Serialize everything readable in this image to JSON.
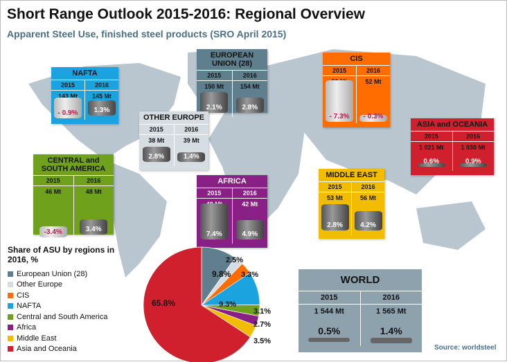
{
  "title": "Short Range Outlook 2015-2016: Regional Overview",
  "subtitle": "Apparent Steel Use, finished steel products (SRO April 2015)",
  "regions": [
    {
      "key": "eu",
      "name": "EUROPEAN UNION (28)",
      "y2015": "2015",
      "y2016": "2016",
      "v2015": "150 Mt",
      "v2016": "154 Mt",
      "g2015": "2.1%",
      "g2016": "2.8%",
      "color": "#5f7f8f"
    },
    {
      "key": "nafta",
      "name": "NAFTA",
      "y2015": "2015",
      "y2016": "2016",
      "v2015": "143 Mt",
      "v2016": "145 Mt",
      "g2015": "- 0.9%",
      "g2016": "1.3%",
      "color": "#1ba3df"
    },
    {
      "key": "cis",
      "name": "CIS",
      "y2015": "2015",
      "y2016": "2016",
      "v2015": "52 Mt",
      "v2016": "52 Mt",
      "g2015": "- 7.3%",
      "g2016": "- 0.3%",
      "color": "#ff6d00"
    },
    {
      "key": "oe",
      "name": "OTHER EUROPE",
      "y2015": "2015",
      "y2016": "2016",
      "v2015": "38 Mt",
      "v2016": "39 Mt",
      "g2015": "2.8%",
      "g2016": "1.4%",
      "color": "#d6dde2"
    },
    {
      "key": "asia",
      "name": "ASIA and OCEANIA",
      "y2015": "2015",
      "y2016": "2016",
      "v2015": "1 021 Mt",
      "v2016": "1 030 Mt",
      "g2015": "0.6%",
      "g2016": "0.9%",
      "color": "#d0202e"
    },
    {
      "key": "csa",
      "name": "CENTRAL and SOUTH AMERICA",
      "y2015": "2015",
      "y2016": "2016",
      "v2015": "46 Mt",
      "v2016": "48 Mt",
      "g2015": "-3.4%",
      "g2016": "3.4%",
      "color": "#6fa11c"
    },
    {
      "key": "africa",
      "name": "AFRICA",
      "y2015": "2015",
      "y2016": "2016",
      "v2015": "40 Mt",
      "v2016": "42 Mt",
      "g2015": "7.4%",
      "g2016": "4.9%",
      "color": "#8a1f86"
    },
    {
      "key": "me",
      "name": "MIDDLE EAST",
      "y2015": "2015",
      "y2016": "2016",
      "v2015": "53 Mt",
      "v2016": "56 Mt",
      "g2015": "2.8%",
      "g2016": "4.2%",
      "color": "#f2bd00"
    }
  ],
  "world": {
    "name": "WORLD",
    "y2015": "2015",
    "y2016": "2016",
    "v2015": "1 544 Mt",
    "v2016": "1 565 Mt",
    "g2015": "0.5%",
    "g2016": "1.4%"
  },
  "source": "Source: worldsteel",
  "chart_data": {
    "type": "pie",
    "title": "Share of ASU by regions in 2016, %",
    "categories": [
      "European Union (28)",
      "Other Europe",
      "CIS",
      "NAFTA",
      "Central and South America",
      "Africa",
      "Middle East",
      "Asia and Oceania"
    ],
    "values": [
      9.8,
      2.5,
      3.3,
      9.3,
      3.1,
      2.7,
      3.5,
      65.8
    ],
    "labels": [
      "9.8%",
      "2.5%",
      "3.3%",
      "9.3%",
      "3.1%",
      "2.7%",
      "3.5%",
      "65.8%"
    ],
    "colors": [
      "#5f7f8f",
      "#d6dde2",
      "#ff6d00",
      "#1ba3df",
      "#6fa11c",
      "#8a1f86",
      "#f2bd00",
      "#d0202e"
    ],
    "legend": "left"
  }
}
